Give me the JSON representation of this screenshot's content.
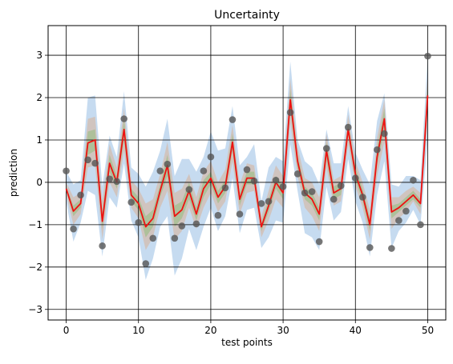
{
  "chart_data": {
    "type": "line",
    "title": "Uncertainty",
    "xlabel": "test points",
    "ylabel": "prediction",
    "xlim": [
      -2.5,
      52.5
    ],
    "ylim": [
      -3.25,
      3.7
    ],
    "xticks": [
      0,
      10,
      20,
      30,
      40,
      50
    ],
    "yticks": [
      -3,
      -2,
      -1,
      0,
      1,
      2,
      3
    ],
    "xtick_labels": [
      "0",
      "10",
      "20",
      "30",
      "40",
      "50"
    ],
    "ytick_labels": [
      "−3",
      "−2",
      "−1",
      "0",
      "1",
      "2",
      "3"
    ],
    "grid": true,
    "x": [
      0,
      1,
      2,
      3,
      4,
      5,
      6,
      7,
      8,
      9,
      10,
      11,
      12,
      13,
      14,
      15,
      16,
      17,
      18,
      19,
      20,
      21,
      22,
      23,
      24,
      25,
      26,
      27,
      28,
      29,
      30,
      31,
      32,
      33,
      34,
      35,
      36,
      37,
      38,
      39,
      40,
      41,
      42,
      43,
      44,
      45,
      46,
      47,
      48,
      49,
      50
    ],
    "series": [
      {
        "kind": "scatter",
        "color": "#555555",
        "values": [
          0.27,
          -1.1,
          -0.3,
          0.53,
          0.45,
          -1.5,
          0.08,
          0.02,
          1.5,
          -0.47,
          -0.95,
          -1.92,
          -1.32,
          0.27,
          0.43,
          -1.32,
          -1.03,
          -0.17,
          -0.98,
          0.27,
          0.6,
          -0.78,
          -0.13,
          1.48,
          -0.75,
          0.3,
          0.03,
          -0.5,
          -0.45,
          0.05,
          -0.1,
          1.65,
          0.2,
          -0.25,
          -0.22,
          -1.4,
          0.8,
          -0.4,
          -0.08,
          1.3,
          0.1,
          -0.35,
          -1.54,
          0.77,
          1.15,
          -1.56,
          -0.9,
          -0.68,
          0.05,
          -1.0,
          2.98
        ]
      },
      {
        "kind": "line",
        "color": "#ee1111",
        "values": [
          -0.15,
          -0.68,
          -0.5,
          0.93,
          1.0,
          -0.92,
          0.45,
          0.0,
          1.25,
          -0.3,
          -0.5,
          -1.05,
          -0.85,
          -0.2,
          0.4,
          -0.8,
          -0.65,
          -0.2,
          -0.75,
          -0.15,
          0.1,
          -0.35,
          -0.1,
          0.95,
          -0.4,
          0.1,
          0.1,
          -1.05,
          -0.55,
          0.0,
          -0.25,
          1.95,
          0.5,
          -0.25,
          -0.4,
          -0.75,
          0.75,
          -0.25,
          -0.15,
          1.25,
          0.2,
          -0.3,
          -1.0,
          0.6,
          1.5,
          -0.7,
          -0.6,
          -0.45,
          -0.3,
          -0.5,
          2.05
        ]
      }
    ],
    "bands": [
      {
        "color": "#a8c8e8",
        "lower": [
          -0.45,
          -1.4,
          -0.95,
          -0.2,
          -0.3,
          -1.75,
          -0.35,
          -0.6,
          0.45,
          -0.9,
          -1.3,
          -2.3,
          -1.8,
          -1.05,
          -0.8,
          -2.2,
          -1.8,
          -1.1,
          -1.6,
          -1.05,
          -0.6,
          -1.15,
          -0.8,
          0.1,
          -1.2,
          -0.65,
          -0.6,
          -1.55,
          -1.3,
          -0.9,
          -0.95,
          0.9,
          -0.2,
          -1.2,
          -1.3,
          -1.6,
          -0.1,
          -0.9,
          -0.7,
          0.55,
          -0.45,
          -0.95,
          -1.75,
          -0.3,
          0.5,
          -1.55,
          -1.15,
          -0.95,
          -0.65,
          -1.0,
          1.0
        ],
        "upper": [
          0.25,
          -0.05,
          0.05,
          2.0,
          2.05,
          -0.1,
          1.1,
          0.6,
          2.15,
          0.35,
          0.2,
          -0.1,
          0.25,
          0.75,
          1.5,
          0.15,
          0.55,
          0.55,
          0.25,
          0.6,
          1.2,
          0.75,
          0.8,
          1.8,
          0.4,
          0.6,
          0.9,
          -0.45,
          0.35,
          0.6,
          0.5,
          2.85,
          1.0,
          0.5,
          0.35,
          -0.05,
          1.25,
          0.45,
          0.45,
          1.8,
          0.7,
          0.3,
          -0.05,
          1.45,
          2.1,
          -0.05,
          -0.1,
          0.15,
          0.15,
          0.05,
          3.0
        ]
      },
      {
        "color": "#d6b9a5",
        "lower": [
          -0.3,
          -1.0,
          -0.75,
          0.35,
          0.4,
          -1.35,
          0.0,
          -0.35,
          0.75,
          -0.6,
          -0.85,
          -1.6,
          -1.3,
          -0.6,
          -0.2,
          -1.35,
          -1.15,
          -0.6,
          -1.1,
          -0.6,
          -0.25,
          -0.7,
          -0.45,
          0.5,
          -0.75,
          -0.25,
          -0.2,
          -1.3,
          -0.9,
          -0.4,
          -0.6,
          1.4,
          0.15,
          -0.6,
          -0.8,
          -1.15,
          0.35,
          -0.55,
          -0.45,
          0.9,
          -0.1,
          -0.6,
          -1.35,
          0.15,
          0.95,
          -1.1,
          -0.85,
          -0.7,
          -0.45,
          -0.75,
          1.5
        ],
        "upper": [
          0.0,
          -0.35,
          -0.25,
          1.5,
          1.55,
          -0.45,
          0.9,
          0.35,
          1.75,
          0.05,
          -0.15,
          -0.5,
          -0.4,
          0.2,
          0.95,
          -0.25,
          -0.15,
          0.2,
          -0.35,
          0.25,
          0.5,
          0.0,
          0.3,
          1.35,
          -0.05,
          0.45,
          0.4,
          -0.8,
          -0.2,
          0.4,
          0.15,
          2.45,
          0.85,
          0.1,
          0.0,
          -0.35,
          1.15,
          0.05,
          0.15,
          1.6,
          0.5,
          0.0,
          -0.65,
          1.05,
          1.95,
          -0.35,
          -0.35,
          -0.2,
          -0.1,
          -0.25,
          2.6
        ]
      },
      {
        "color": "#9bbf86",
        "lower": [
          -0.2,
          -0.8,
          -0.6,
          0.65,
          0.75,
          -1.1,
          0.25,
          -0.15,
          1.0,
          -0.45,
          -0.65,
          -1.3,
          -1.05,
          -0.35,
          0.15,
          -1.05,
          -0.85,
          -0.4,
          -0.9,
          -0.35,
          -0.05,
          -0.5,
          -0.25,
          0.75,
          -0.55,
          -0.05,
          -0.05,
          -1.15,
          -0.7,
          -0.15,
          -0.4,
          1.7,
          0.35,
          -0.4,
          -0.55,
          -0.9,
          0.55,
          -0.4,
          -0.3,
          1.1,
          0.05,
          -0.45,
          -1.15,
          0.4,
          1.25,
          -0.85,
          -0.7,
          -0.55,
          -0.4,
          -0.6,
          1.8
        ],
        "upper": [
          -0.1,
          -0.55,
          -0.4,
          1.2,
          1.25,
          -0.7,
          0.65,
          0.15,
          1.5,
          -0.15,
          -0.35,
          -0.8,
          -0.65,
          -0.05,
          0.65,
          -0.55,
          -0.45,
          0.0,
          -0.6,
          0.05,
          0.25,
          -0.2,
          0.05,
          1.15,
          -0.25,
          0.25,
          0.25,
          -0.95,
          -0.4,
          0.15,
          -0.1,
          2.2,
          0.65,
          -0.1,
          -0.25,
          -0.6,
          0.95,
          -0.1,
          0.0,
          1.4,
          0.35,
          -0.15,
          -0.85,
          0.8,
          1.75,
          -0.55,
          -0.5,
          -0.35,
          -0.2,
          -0.4,
          2.3
        ]
      }
    ]
  }
}
